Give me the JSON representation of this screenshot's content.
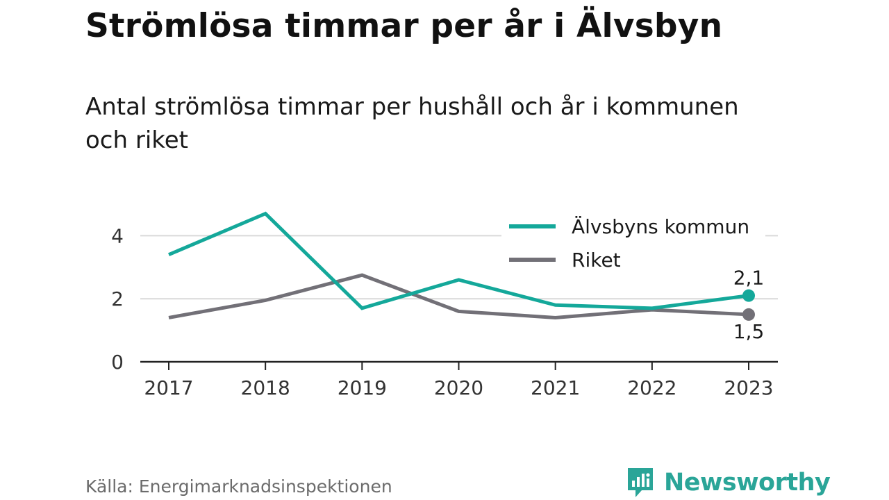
{
  "title": "Strömlösa timmar per år i Älvsbyn",
  "subtitle": "Antal strömlösa timmar per hushåll och år i kommunen och riket",
  "source": "Källa: Energimarknadsinspektionen",
  "brand": {
    "name": "Newsworthy",
    "icon": "newsworthy-logo-icon"
  },
  "colors": {
    "kommun": "#14a89a",
    "riket": "#727077",
    "grid": "#d9d9d9",
    "axis": "#222222"
  },
  "chart_data": {
    "type": "line",
    "title": "Strömlösa timmar per år i Älvsbyn",
    "subtitle": "Antal strömlösa timmar per hushåll och år i kommunen och riket",
    "x": [
      "2017",
      "2018",
      "2019",
      "2020",
      "2021",
      "2022",
      "2023"
    ],
    "series": [
      {
        "name": "Älvsbyns kommun",
        "color": "#14a89a",
        "values": [
          3.4,
          4.7,
          1.7,
          2.6,
          1.8,
          1.7,
          2.1
        ],
        "end_label": "2,1"
      },
      {
        "name": "Riket",
        "color": "#727077",
        "values": [
          1.4,
          1.95,
          2.75,
          1.6,
          1.4,
          1.65,
          1.5
        ],
        "end_label": "1,5"
      }
    ],
    "yticks": [
      0,
      2,
      4
    ],
    "ylim": [
      0,
      5
    ],
    "grid": true,
    "legend": "top-right",
    "xlabel": "",
    "ylabel": ""
  }
}
